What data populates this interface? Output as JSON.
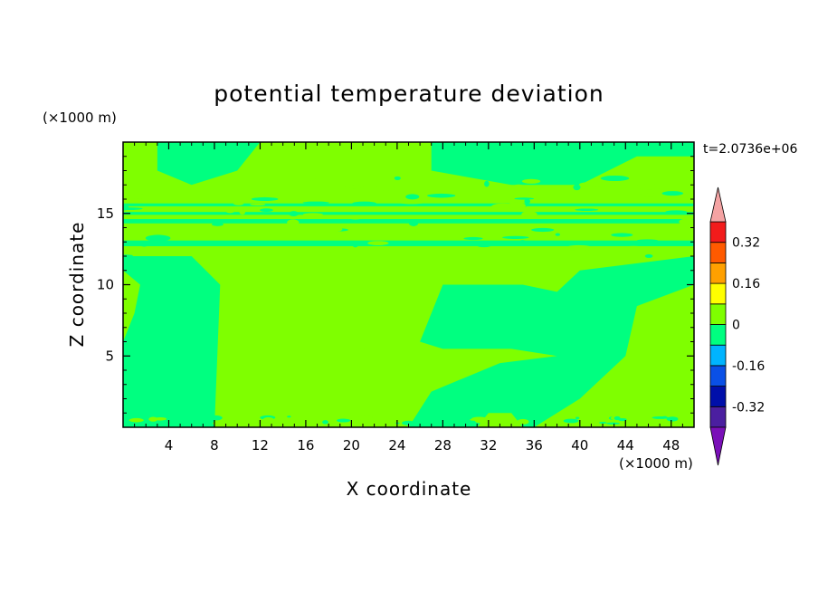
{
  "chart_data": {
    "type": "heatmap",
    "title": "potential temperature deviation",
    "xlabel": "X coordinate",
    "ylabel": "Z coordinate",
    "x_unit": "(×1000 m)",
    "y_unit": "(×1000 m)",
    "time_label": "t=2.0736e+06",
    "xlim": [
      0,
      50
    ],
    "ylim": [
      0,
      20
    ],
    "x_ticks": [
      4,
      8,
      12,
      16,
      20,
      24,
      28,
      32,
      36,
      40,
      44,
      48
    ],
    "y_ticks": [
      5,
      10,
      15
    ],
    "colorbar": {
      "levels": [
        -0.4,
        -0.32,
        -0.24,
        -0.16,
        -0.08,
        0,
        0.08,
        0.16,
        0.24,
        0.32,
        0.4
      ],
      "tick_labels": [
        "0.32",
        "0.16",
        "0",
        "-0.16",
        "-0.32"
      ],
      "tick_values": [
        0.32,
        0.16,
        0,
        -0.16,
        -0.32
      ],
      "colors": [
        "#4b1fa0",
        "#000faa",
        "#0a50e6",
        "#00b4ff",
        "#00ff80",
        "#7fff00",
        "#ffff00",
        "#ffa000",
        "#ff5a00",
        "#f21b1b"
      ],
      "under_color": "#7a10b8",
      "over_color": "#f4a3a3"
    },
    "field": {
      "background_value": -0.04,
      "background_color": "#00ff80",
      "regions": [
        {
          "value": 0.04,
          "color": "#7fff00",
          "description_polygon_xz": [
            [
              8,
              0
            ],
            [
              8.5,
              10
            ],
            [
              6,
              12
            ],
            [
              0,
              12
            ],
            [
              0,
              20
            ],
            [
              3,
              20
            ],
            [
              3,
              18
            ],
            [
              6,
              17
            ],
            [
              10,
              18
            ],
            [
              12,
              20
            ],
            [
              27,
              20
            ],
            [
              27,
              18
            ],
            [
              34,
              17
            ],
            [
              40,
              17
            ],
            [
              45,
              19
            ],
            [
              50,
              19
            ],
            [
              50,
              12
            ],
            [
              45,
              11.5
            ],
            [
              40,
              11
            ],
            [
              38,
              9.5
            ],
            [
              35,
              10
            ],
            [
              28,
              10
            ],
            [
              26,
              6
            ],
            [
              28,
              5.5
            ],
            [
              34,
              5.5
            ],
            [
              38,
              5
            ],
            [
              33,
              4.5
            ],
            [
              27,
              2.5
            ],
            [
              25,
              0
            ]
          ]
        },
        {
          "value": 0.04,
          "color": "#7fff00",
          "description_polygon_xz": [
            [
              36,
              0
            ],
            [
              40,
              2
            ],
            [
              44,
              5
            ],
            [
              45,
              8.5
            ],
            [
              50,
              10
            ],
            [
              50,
              0
            ]
          ]
        },
        {
          "value": 0.04,
          "color": "#7fff00",
          "description_polygon_xz": [
            [
              0,
              6
            ],
            [
              1,
              8
            ],
            [
              1.5,
              10
            ],
            [
              0,
              11
            ]
          ]
        },
        {
          "value": 0.04,
          "color": "#7fff00",
          "description_polygon_xz": [
            [
              31,
              0
            ],
            [
              35,
              0
            ],
            [
              34,
              1
            ],
            [
              32,
              1
            ]
          ]
        },
        {
          "value": 0.04,
          "color": "#7fff00",
          "description_polygon_xz": [
            [
              20,
              6.3
            ],
            [
              21,
              6.8
            ],
            [
              22,
              6.2
            ],
            [
              21.5,
              5.5
            ],
            [
              20.5,
              5.6
            ]
          ]
        }
      ],
      "bands": [
        {
          "z": [
            14.3,
            14.6
          ],
          "value": -0.04,
          "color": "#00ff80"
        },
        {
          "z": [
            14.9,
            15.1
          ],
          "value": -0.04,
          "color": "#00ff80"
        },
        {
          "z": [
            15.5,
            15.7
          ],
          "value": -0.04,
          "color": "#00ff80"
        },
        {
          "z": [
            12.7,
            13.1
          ],
          "value": -0.04,
          "color": "#00ff80"
        }
      ]
    }
  }
}
